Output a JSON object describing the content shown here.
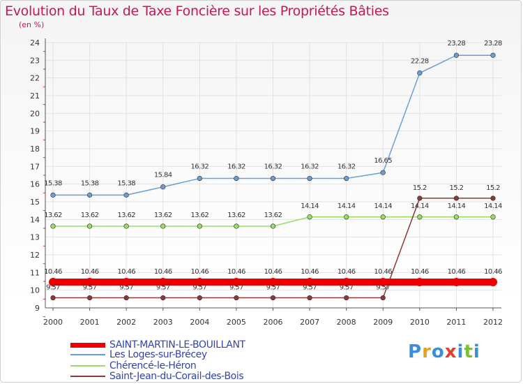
{
  "header": {
    "title": "Evolution du Taux de Taxe Foncière sur les Propriétés Bâties",
    "subtitle": "(en %)"
  },
  "logo": {
    "text": "Proxiti",
    "colors": [
      "#3a8fd6",
      "#e8a020",
      "#3a8fd6",
      "#e04030",
      "#3a8fd6",
      "#7cc03a",
      "#3a8fd6"
    ]
  },
  "chart_data": {
    "type": "line",
    "title": "Evolution du Taux de Taxe Foncière sur les Propriétés Bâties",
    "ylabel": "(en %)",
    "xlabel": "",
    "categories": [
      "2000",
      "2001",
      "2002",
      "2003",
      "2004",
      "2005",
      "2006",
      "2007",
      "2008",
      "2009",
      "2010",
      "2011",
      "2012"
    ],
    "ylim": [
      9,
      24
    ],
    "yticks": [
      "9",
      "10",
      "11",
      "12",
      "13",
      "14",
      "15",
      "16",
      "17",
      "18",
      "19",
      "20",
      "21",
      "22",
      "23",
      "24"
    ],
    "grid": true,
    "legend_position": "bottom-left",
    "series": [
      {
        "name": "SAINT-MARTIN-LE-BOUILLANT",
        "color": "#ee0000",
        "values": [
          10.46,
          10.46,
          10.46,
          10.46,
          10.46,
          10.46,
          10.46,
          10.46,
          10.46,
          10.46,
          10.46,
          10.46,
          10.46
        ],
        "labels": [
          "10.46",
          "10.46",
          "10.46",
          "10.46",
          "10.46",
          "10.46",
          "10.46",
          "10.46",
          "10.46",
          "10.46",
          "10.46",
          "10.46",
          "10.46"
        ]
      },
      {
        "name": "Les Loges-sur-Brécey",
        "color": "#6a9fd4",
        "values": [
          15.38,
          15.38,
          15.38,
          15.84,
          16.32,
          16.32,
          16.32,
          16.32,
          16.32,
          16.65,
          22.28,
          23.28,
          23.28
        ],
        "labels": [
          "15.38",
          "15.38",
          "15.38",
          "15.84",
          "16.32",
          "16.32",
          "16.32",
          "16.32",
          "16.32",
          "16.65",
          "22.28",
          "23.28",
          "23.28"
        ]
      },
      {
        "name": "Chérencé-le-Héron",
        "color": "#99dd66",
        "values": [
          13.62,
          13.62,
          13.62,
          13.62,
          13.62,
          13.62,
          13.62,
          14.14,
          14.14,
          14.14,
          14.14,
          14.14,
          14.14
        ],
        "labels": [
          "13.62",
          "13.62",
          "13.62",
          "13.62",
          "13.62",
          "13.62",
          "13.62",
          "14.14",
          "14.14",
          "14.14",
          "14.14",
          "14.14",
          "14.14"
        ]
      },
      {
        "name": "Saint-Jean-du-Corail-des-Bois",
        "color": "#8b3a3a",
        "values": [
          9.57,
          9.57,
          9.57,
          9.57,
          9.57,
          9.57,
          9.57,
          9.57,
          9.57,
          9.57,
          15.2,
          15.2,
          15.2
        ],
        "labels": [
          "9.57",
          "9.57",
          "9.57",
          "9.57",
          "9.57",
          "9.57",
          "9.57",
          "9.57",
          "9.57",
          "9.57",
          "15.2",
          "15.2",
          "15.2"
        ]
      }
    ]
  }
}
